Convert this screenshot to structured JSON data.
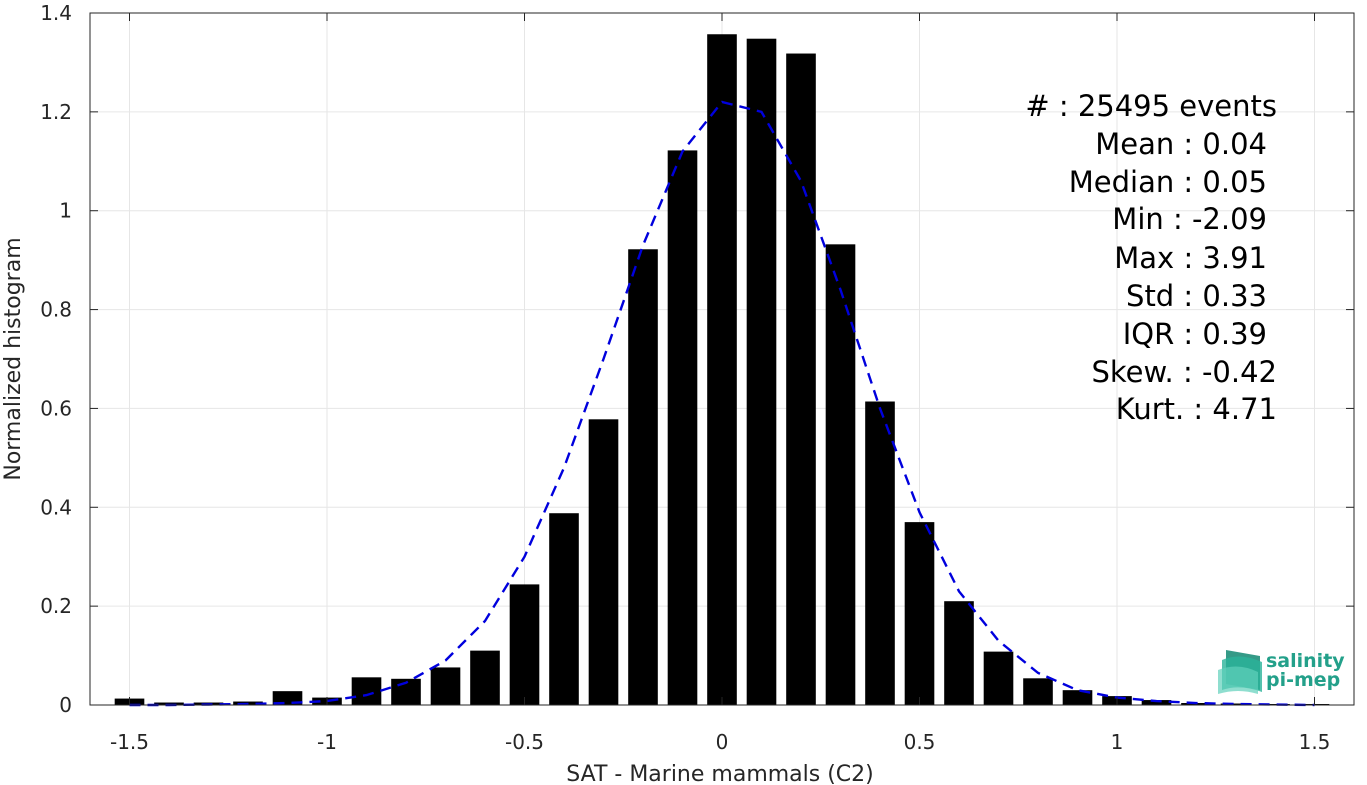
{
  "chart_data": {
    "type": "bar",
    "xlabel": "SAT - Marine mammals (C2)",
    "ylabel": "Normalized histogram",
    "xlim": [
      -1.6,
      1.6
    ],
    "ylim": [
      0,
      1.4
    ],
    "xticks": [
      -1.5,
      -1,
      -0.5,
      0,
      0.5,
      1,
      1.5
    ],
    "xtick_labels": [
      "-1.5",
      "-1",
      "-0.5",
      "0",
      "0.5",
      "1",
      "1.5"
    ],
    "yticks": [
      0,
      0.2,
      0.4,
      0.6,
      0.8,
      1,
      1.2,
      1.4
    ],
    "ytick_labels": [
      "0",
      "0.2",
      "0.4",
      "0.6",
      "0.8",
      "1",
      "1.2",
      "1.4"
    ],
    "grid": true,
    "bar_color": "#000000",
    "bars": {
      "x": [
        -1.5,
        -1.4,
        -1.3,
        -1.2,
        -1.1,
        -1.0,
        -0.9,
        -0.8,
        -0.7,
        -0.6,
        -0.5,
        -0.4,
        -0.3,
        -0.2,
        -0.1,
        0.0,
        0.1,
        0.2,
        0.3,
        0.4,
        0.5,
        0.6,
        0.7,
        0.8,
        0.9,
        1.0,
        1.1,
        1.2,
        1.3,
        1.4,
        1.5
      ],
      "values": [
        0.013,
        0.005,
        0.005,
        0.007,
        0.028,
        0.015,
        0.056,
        0.053,
        0.076,
        0.11,
        0.244,
        0.388,
        0.578,
        0.922,
        1.122,
        1.357,
        1.348,
        1.318,
        0.932,
        0.614,
        0.37,
        0.21,
        0.108,
        0.054,
        0.03,
        0.018,
        0.01,
        0.004,
        0.003,
        0.002,
        0.002
      ]
    },
    "fit_line": {
      "style": "dashed",
      "color": "#0000dd",
      "x": [
        -1.5,
        -1.4,
        -1.3,
        -1.2,
        -1.1,
        -1.0,
        -0.9,
        -0.8,
        -0.7,
        -0.6,
        -0.5,
        -0.4,
        -0.3,
        -0.2,
        -0.1,
        0.0,
        0.1,
        0.2,
        0.3,
        0.4,
        0.5,
        0.6,
        0.7,
        0.8,
        0.9,
        1.0,
        1.1,
        1.2,
        1.3,
        1.4,
        1.5
      ],
      "y": [
        0.0,
        0.0,
        0.001,
        0.002,
        0.004,
        0.008,
        0.02,
        0.045,
        0.09,
        0.17,
        0.3,
        0.48,
        0.7,
        0.93,
        1.12,
        1.22,
        1.2,
        1.06,
        0.84,
        0.6,
        0.39,
        0.23,
        0.13,
        0.065,
        0.03,
        0.015,
        0.008,
        0.004,
        0.002,
        0.001,
        0.0
      ]
    },
    "stats": [
      {
        "label": "#  : 25495 events"
      },
      {
        "label": "Mean : 0.04"
      },
      {
        "label": "Median : 0.05"
      },
      {
        "label": "Min : -2.09"
      },
      {
        "label": "Max : 3.91"
      },
      {
        "label": "Std : 0.33"
      },
      {
        "label": "IQR : 0.39"
      },
      {
        "label": "Skew. : -0.42"
      },
      {
        "label": "Kurt. : 4.71"
      }
    ]
  },
  "logo": {
    "line1": "salinity",
    "line2": "pi-mep",
    "color": "#23a08a"
  }
}
